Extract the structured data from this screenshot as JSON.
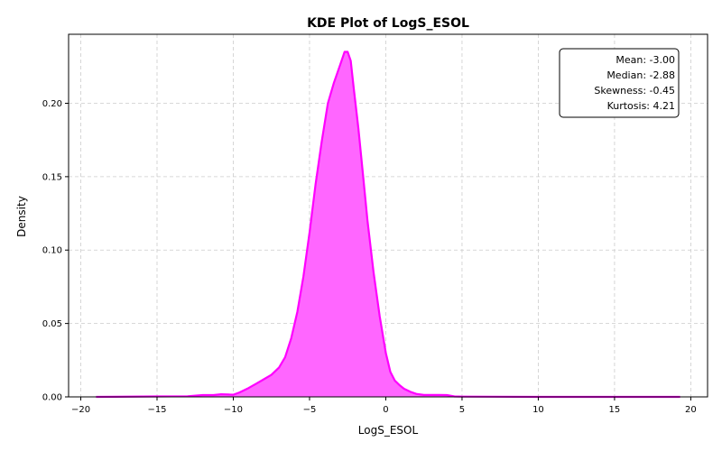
{
  "chart_data": {
    "type": "area",
    "title": "KDE Plot of LogS_ESOL",
    "xlabel": "LogS_ESOL",
    "ylabel": "Density",
    "xlim": [
      -20.8,
      21.1
    ],
    "ylim": [
      0,
      0.247
    ],
    "x_ticks": [
      -20,
      -15,
      -10,
      -5,
      0,
      5,
      10,
      15,
      20
    ],
    "y_ticks": [
      0.0,
      0.05,
      0.1,
      0.15,
      0.2
    ],
    "x_tick_labels": [
      "−20",
      "−15",
      "−10",
      "−5",
      "0",
      "5",
      "10",
      "15",
      "20"
    ],
    "y_tick_labels": [
      "0.00",
      "0.05",
      "0.10",
      "0.15",
      "0.20"
    ],
    "grid": true,
    "colors": {
      "line": "#ff00ff",
      "fill": "#ff66ff"
    },
    "series": [
      {
        "x": [
          -19.0,
          -15.0,
          -13.0,
          -12.0,
          -11.3,
          -10.8,
          -10.3,
          -10.0,
          -9.6,
          -9.0,
          -8.5,
          -8.0,
          -7.5,
          -7.0,
          -6.6,
          -6.2,
          -5.8,
          -5.4,
          -5.0,
          -4.6,
          -4.2,
          -3.8,
          -3.4,
          -3.0,
          -2.7,
          -2.5,
          -2.3,
          -2.1,
          -1.8,
          -1.5,
          -1.2,
          -0.8,
          -0.4,
          0.0,
          0.3,
          0.6,
          0.9,
          1.2,
          1.6,
          2.0,
          2.5,
          3.0,
          3.5,
          4.0,
          4.5,
          5.0,
          7.0,
          10.0,
          15.0,
          19.3
        ],
        "y": [
          0.0,
          0.0003,
          0.0004,
          0.0012,
          0.0012,
          0.0018,
          0.0016,
          0.0015,
          0.003,
          0.006,
          0.009,
          0.012,
          0.015,
          0.02,
          0.027,
          0.04,
          0.058,
          0.082,
          0.112,
          0.145,
          0.174,
          0.2,
          0.214,
          0.226,
          0.235,
          0.235,
          0.229,
          0.21,
          0.183,
          0.152,
          0.12,
          0.085,
          0.055,
          0.03,
          0.017,
          0.011,
          0.008,
          0.0055,
          0.0035,
          0.002,
          0.0013,
          0.0013,
          0.0013,
          0.0012,
          0.0003,
          0.0002,
          0.0001,
          0.0,
          0.0,
          0.0
        ]
      }
    ],
    "stats": [
      "Mean: -3.00",
      "Median: -2.88",
      "Skewness: -0.45",
      "Kurtosis: 4.21"
    ]
  }
}
